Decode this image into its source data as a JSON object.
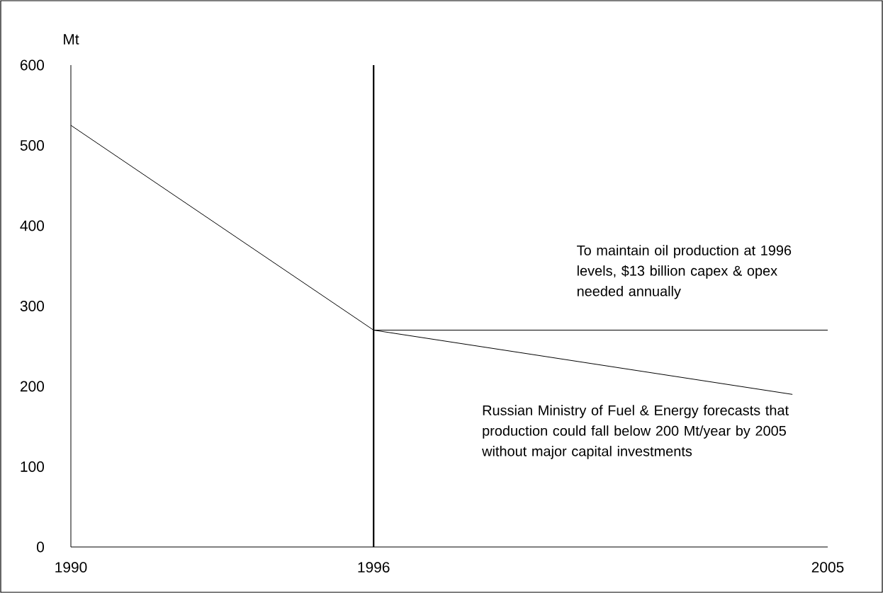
{
  "chart_data": {
    "type": "line",
    "ylabel": "Mt",
    "xlim": [
      1990,
      2005
    ],
    "xticks": [
      1990,
      1996,
      2005
    ],
    "ylim": [
      0,
      600
    ],
    "yticks": [
      0,
      100,
      200,
      300,
      400,
      500,
      600
    ],
    "grid": false,
    "marker": "none",
    "line_style": "solid",
    "series": [
      {
        "color": "#000000",
        "x": [
          1990,
          1996,
          2005
        ],
        "values": [
          525,
          270,
          270
        ]
      },
      {
        "color": "#000000",
        "x": [
          1996,
          2004.3
        ],
        "values": [
          270,
          190
        ]
      }
    ],
    "ref_lines": [
      {
        "axis": "x",
        "value": 1996,
        "color": "#000000"
      }
    ],
    "annotations": [
      "To maintain oil production at 1996 levels, $13 billion capex & opex needed annually",
      "Russian Ministry of Fuel & Energy forecasts that production could fall below 200 Mt/year by 2005 without major capital investments"
    ]
  }
}
